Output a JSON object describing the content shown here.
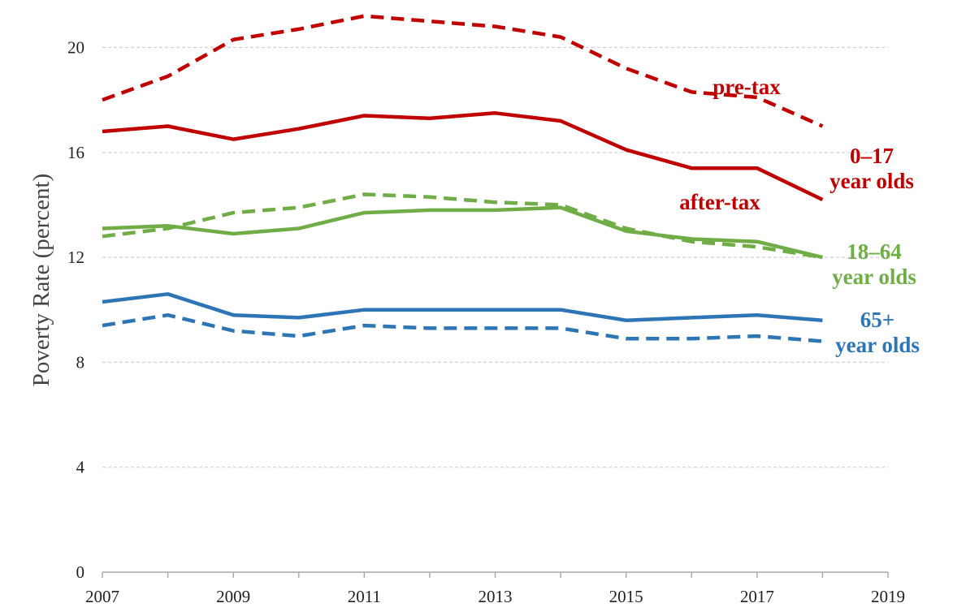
{
  "chart_data": {
    "type": "line",
    "title": "",
    "xlabel": "",
    "ylabel": "Poverty Rate (percent)",
    "xlim": [
      2007,
      2019
    ],
    "ylim": [
      0,
      21.5
    ],
    "x_ticks": [
      "2007",
      "2009",
      "2011",
      "2013",
      "2015",
      "2017",
      "2019"
    ],
    "y_ticks": [
      "0",
      "4",
      "8",
      "12",
      "16",
      "20"
    ],
    "grid": true,
    "x": [
      2007,
      2008,
      2009,
      2010,
      2011,
      2012,
      2013,
      2014,
      2015,
      2016,
      2017,
      2018
    ],
    "series": [
      {
        "name": "0–17 year olds pre-tax",
        "group": "0–17",
        "measure": "pre-tax",
        "color": "#c00000",
        "dash": true,
        "values": [
          18.0,
          18.9,
          20.3,
          20.7,
          21.2,
          21.0,
          20.8,
          20.4,
          19.2,
          18.3,
          18.1,
          17.0
        ]
      },
      {
        "name": "0–17 year olds after-tax",
        "group": "0–17",
        "measure": "after-tax",
        "color": "#c00000",
        "dash": false,
        "values": [
          16.8,
          17.0,
          16.5,
          16.9,
          17.4,
          17.3,
          17.5,
          17.2,
          16.1,
          15.4,
          15.4,
          14.2
        ]
      },
      {
        "name": "18–64 year olds pre-tax",
        "group": "18–64",
        "measure": "pre-tax",
        "color": "#70ad47",
        "dash": true,
        "values": [
          12.8,
          13.1,
          13.7,
          13.9,
          14.4,
          14.3,
          14.1,
          14.0,
          13.1,
          12.6,
          12.4,
          12.0
        ]
      },
      {
        "name": "18–64 year olds after-tax",
        "group": "18–64",
        "measure": "after-tax",
        "color": "#70ad47",
        "dash": false,
        "values": [
          13.1,
          13.2,
          12.9,
          13.1,
          13.7,
          13.8,
          13.8,
          13.9,
          13.0,
          12.7,
          12.6,
          12.0
        ]
      },
      {
        "name": "65+ year olds pre-tax",
        "group": "65+",
        "measure": "pre-tax",
        "color": "#2e75b6",
        "dash": true,
        "values": [
          9.4,
          9.8,
          9.2,
          9.0,
          9.4,
          9.3,
          9.3,
          9.3,
          8.9,
          8.9,
          9.0,
          8.8
        ]
      },
      {
        "name": "65+ year olds after-tax",
        "group": "65+",
        "measure": "after-tax",
        "color": "#2e75b6",
        "dash": false,
        "values": [
          10.3,
          10.6,
          9.8,
          9.7,
          10.0,
          10.0,
          10.0,
          10.0,
          9.6,
          9.7,
          9.8,
          9.6
        ]
      }
    ],
    "annotations": {
      "pre_tax": "pre-tax",
      "after_tax": "after-tax",
      "group_0_17_line1": "0–17",
      "group_0_17_line2": "year olds",
      "group_18_64_line1": "18–64",
      "group_18_64_line2": "year olds",
      "group_65_line1": "65+",
      "group_65_line2": "year olds"
    },
    "colors": {
      "red": "#c00000",
      "green": "#70ad47",
      "blue": "#2e75b6"
    }
  }
}
